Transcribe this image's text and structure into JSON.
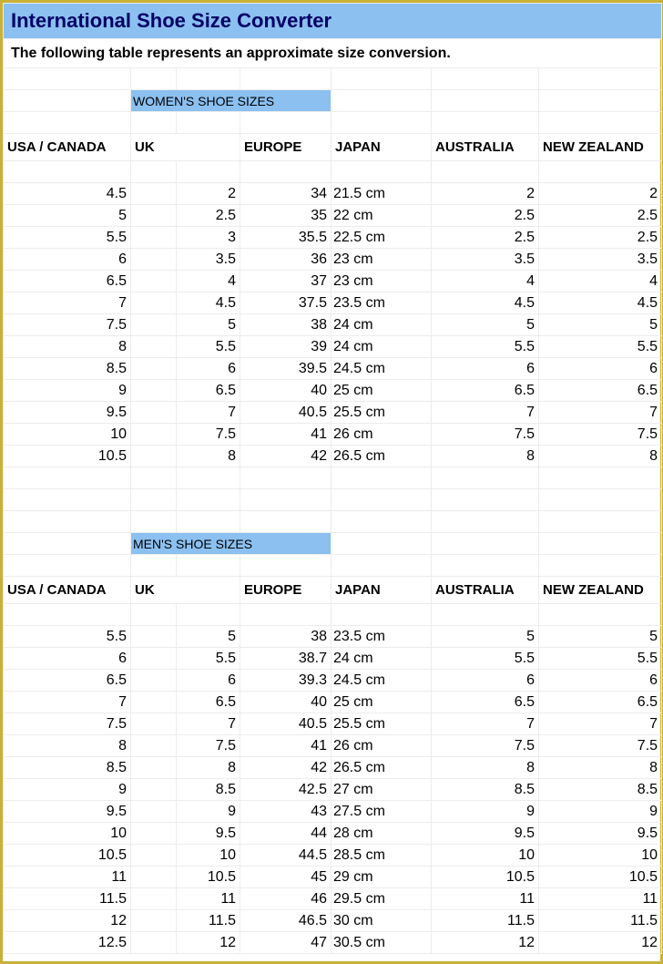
{
  "colors": {
    "border": "#c9b037",
    "header_bg": "#8bc0f0",
    "grid": "#ececec",
    "title_color": "#000066"
  },
  "title": "International Shoe Size Converter",
  "subtitle": "The following table represents an approximate size conversion.",
  "columns": [
    "USA / CANADA",
    "UK",
    "EUROPE",
    "JAPAN",
    "AUSTRALIA",
    "NEW ZEALAND"
  ],
  "women": {
    "label": "WOMEN'S SHOE SIZES",
    "rows": [
      {
        "usa": "4.5",
        "uk": "2",
        "eu": "34",
        "jp": "21.5 cm",
        "au": "2",
        "nz": "2"
      },
      {
        "usa": "5",
        "uk": "2.5",
        "eu": "35",
        "jp": "22 cm",
        "au": "2.5",
        "nz": "2.5"
      },
      {
        "usa": "5.5",
        "uk": "3",
        "eu": "35.5",
        "jp": "22.5 cm",
        "au": "2.5",
        "nz": "2.5"
      },
      {
        "usa": "6",
        "uk": "3.5",
        "eu": "36",
        "jp": "23 cm",
        "au": "3.5",
        "nz": "3.5"
      },
      {
        "usa": "6.5",
        "uk": "4",
        "eu": "37",
        "jp": "23 cm",
        "au": "4",
        "nz": "4"
      },
      {
        "usa": "7",
        "uk": "4.5",
        "eu": "37.5",
        "jp": "23.5 cm",
        "au": "4.5",
        "nz": "4.5"
      },
      {
        "usa": "7.5",
        "uk": "5",
        "eu": "38",
        "jp": "24 cm",
        "au": "5",
        "nz": "5"
      },
      {
        "usa": "8",
        "uk": "5.5",
        "eu": "39",
        "jp": "24 cm",
        "au": "5.5",
        "nz": "5.5"
      },
      {
        "usa": "8.5",
        "uk": "6",
        "eu": "39.5",
        "jp": "24.5 cm",
        "au": "6",
        "nz": "6"
      },
      {
        "usa": "9",
        "uk": "6.5",
        "eu": "40",
        "jp": "25 cm",
        "au": "6.5",
        "nz": "6.5"
      },
      {
        "usa": "9.5",
        "uk": "7",
        "eu": "40.5",
        "jp": "25.5 cm",
        "au": "7",
        "nz": "7"
      },
      {
        "usa": "10",
        "uk": "7.5",
        "eu": "41",
        "jp": "26 cm",
        "au": "7.5",
        "nz": "7.5"
      },
      {
        "usa": "10.5",
        "uk": "8",
        "eu": "42",
        "jp": "26.5 cm",
        "au": "8",
        "nz": "8"
      }
    ]
  },
  "men": {
    "label": "MEN'S SHOE SIZES",
    "rows": [
      {
        "usa": "5.5",
        "uk": "5",
        "eu": "38",
        "jp": "23.5 cm",
        "au": "5",
        "nz": "5"
      },
      {
        "usa": "6",
        "uk": "5.5",
        "eu": "38.7",
        "jp": "24 cm",
        "au": "5.5",
        "nz": "5.5"
      },
      {
        "usa": "6.5",
        "uk": "6",
        "eu": "39.3",
        "jp": "24.5 cm",
        "au": "6",
        "nz": "6"
      },
      {
        "usa": "7",
        "uk": "6.5",
        "eu": "40",
        "jp": "25 cm",
        "au": "6.5",
        "nz": "6.5"
      },
      {
        "usa": "7.5",
        "uk": "7",
        "eu": "40.5",
        "jp": "25.5 cm",
        "au": "7",
        "nz": "7"
      },
      {
        "usa": "8",
        "uk": "7.5",
        "eu": "41",
        "jp": "26 cm",
        "au": "7.5",
        "nz": "7.5"
      },
      {
        "usa": "8.5",
        "uk": "8",
        "eu": "42",
        "jp": "26.5 cm",
        "au": "8",
        "nz": "8"
      },
      {
        "usa": "9",
        "uk": "8.5",
        "eu": "42.5",
        "jp": "27 cm",
        "au": "8.5",
        "nz": "8.5"
      },
      {
        "usa": "9.5",
        "uk": "9",
        "eu": "43",
        "jp": "27.5 cm",
        "au": "9",
        "nz": "9"
      },
      {
        "usa": "10",
        "uk": "9.5",
        "eu": "44",
        "jp": "28 cm",
        "au": "9.5",
        "nz": "9.5"
      },
      {
        "usa": "10.5",
        "uk": "10",
        "eu": "44.5",
        "jp": "28.5 cm",
        "au": "10",
        "nz": "10"
      },
      {
        "usa": "11",
        "uk": "10.5",
        "eu": "45",
        "jp": "29 cm",
        "au": "10.5",
        "nz": "10.5"
      },
      {
        "usa": "11.5",
        "uk": "11",
        "eu": "46",
        "jp": "29.5 cm",
        "au": "11",
        "nz": "11"
      },
      {
        "usa": "12",
        "uk": "11.5",
        "eu": "46.5",
        "jp": "30 cm",
        "au": "11.5",
        "nz": "11.5"
      },
      {
        "usa": "12.5",
        "uk": "12",
        "eu": "47",
        "jp": "30.5 cm",
        "au": "12",
        "nz": "12"
      }
    ]
  }
}
